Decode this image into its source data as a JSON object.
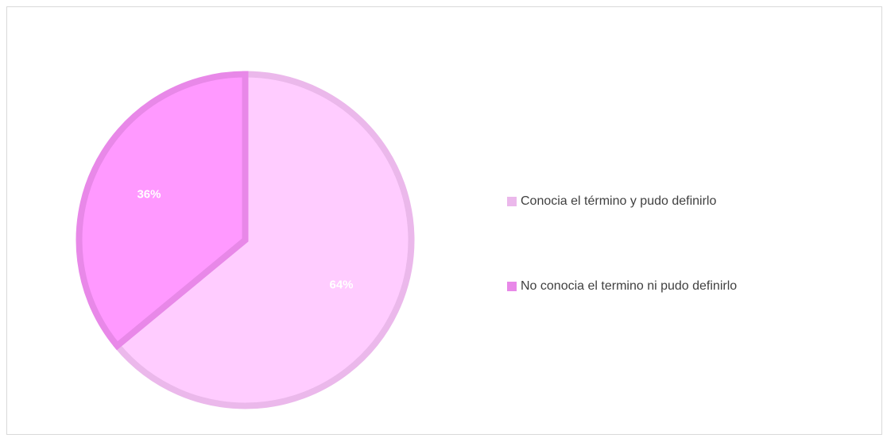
{
  "chart_data": {
    "type": "pie",
    "categories": [
      "Conocia el término y pudo definirlo",
      "No conocia el termino ni pudo definirlo"
    ],
    "values": [
      64,
      36
    ],
    "value_labels": [
      "64%",
      "36%"
    ],
    "colors": [
      "#FFCCFF",
      "#FF99FF"
    ],
    "edge_colors": [
      "#EBB8EB",
      "#E888E8"
    ],
    "legend": "right"
  }
}
